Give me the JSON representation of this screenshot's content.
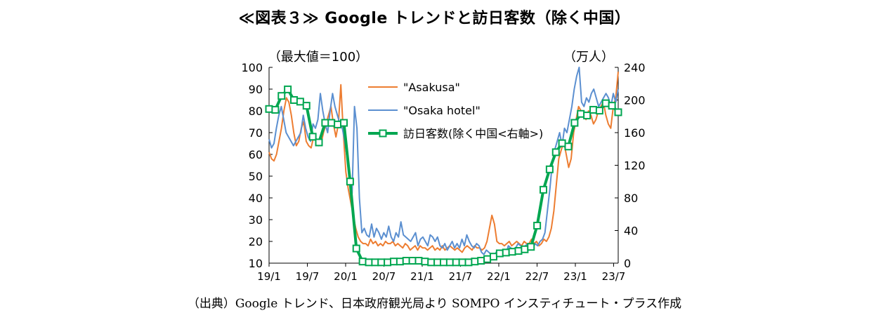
{
  "title": "≪図表３≫ Google トレンドと訪日客数（除く中国）",
  "source": "（出典）Google トレンド、日本政府観光局より SOMPO インスティチュート・プラス作成",
  "chart_data": {
    "type": "line",
    "left_unit": "（最大値＝100）",
    "right_unit": "（万人）",
    "left_ylim": [
      10,
      100
    ],
    "left_yticks": [
      "10",
      "20",
      "30",
      "40",
      "50",
      "60",
      "70",
      "80",
      "90",
      "100"
    ],
    "right_ylim": [
      0,
      240
    ],
    "right_yticks": [
      "0",
      "40",
      "80",
      "120",
      "160",
      "200",
      "240"
    ],
    "x_tick_labels": [
      "19/1",
      "19/7",
      "20/1",
      "20/7",
      "21/1",
      "21/7",
      "22/1",
      "22/7",
      "23/1",
      "23/7"
    ],
    "legend_position": "top-center",
    "grid": false,
    "series": [
      {
        "name": "\"Asakusa\"",
        "axis": "left",
        "color": "#ed7d31",
        "values": [
          61,
          58,
          57,
          60,
          66,
          72,
          80,
          86,
          84,
          78,
          70,
          64,
          66,
          72,
          75,
          66,
          64,
          63,
          68,
          66,
          64,
          65,
          70,
          74,
          78,
          82,
          74,
          68,
          74,
          92,
          70,
          52,
          44,
          38,
          32,
          26,
          22,
          20,
          19,
          19,
          18,
          21,
          19,
          20,
          18,
          19,
          18,
          20,
          19,
          19,
          20,
          18,
          19,
          18,
          17,
          19,
          18,
          16,
          17,
          18,
          16,
          18,
          17,
          17,
          16,
          17,
          18,
          16,
          17,
          16,
          18,
          16,
          17,
          18,
          17,
          16,
          17,
          16,
          15,
          17,
          18,
          17,
          16,
          18,
          17,
          17,
          16,
          17,
          20,
          26,
          32,
          28,
          20,
          19,
          19,
          18,
          19,
          20,
          18,
          19,
          20,
          19,
          18,
          20,
          19,
          19,
          21,
          19,
          20,
          18,
          19,
          21,
          20,
          22,
          26,
          34,
          46,
          58,
          62,
          66,
          60,
          54,
          58,
          70,
          76,
          82,
          80,
          78,
          76,
          80,
          78,
          74,
          76,
          80,
          82,
          84,
          78,
          74,
          72,
          82,
          86,
          98
        ]
      },
      {
        "name": "\"Osaka hotel\"",
        "axis": "left",
        "color": "#5b8fd0",
        "values": [
          67,
          63,
          65,
          72,
          78,
          82,
          76,
          70,
          68,
          66,
          64,
          66,
          68,
          70,
          78,
          72,
          68,
          66,
          74,
          72,
          76,
          88,
          80,
          74,
          70,
          80,
          88,
          82,
          78,
          74,
          72,
          66,
          58,
          48,
          42,
          82,
          72,
          40,
          24,
          26,
          23,
          22,
          28,
          22,
          26,
          24,
          21,
          24,
          22,
          27,
          22,
          20,
          24,
          22,
          29,
          23,
          22,
          21,
          20,
          22,
          24,
          18,
          21,
          22,
          20,
          18,
          23,
          22,
          20,
          22,
          18,
          17,
          19,
          16,
          18,
          20,
          17,
          19,
          17,
          21,
          18,
          23,
          20,
          18,
          17,
          19,
          18,
          15,
          14,
          16,
          15,
          14,
          13,
          15,
          14,
          15,
          16,
          14,
          18,
          17,
          16,
          17,
          19,
          18,
          17,
          18,
          19,
          18,
          17,
          19,
          18,
          20,
          21,
          24,
          34,
          44,
          56,
          62,
          66,
          70,
          64,
          72,
          70,
          76,
          82,
          90,
          96,
          100,
          84,
          82,
          86,
          84,
          88,
          90,
          86,
          82,
          84,
          86,
          88,
          86,
          82,
          88,
          84,
          90
        ]
      },
      {
        "name": "訪日客数(除く中国<右軸>)",
        "axis": "right",
        "color": "#00a650",
        "values": [
          189,
          188,
          205,
          213,
          200,
          198,
          193,
          155,
          148,
          172,
          172,
          170,
          172,
          100,
          18,
          2,
          1,
          1,
          1,
          1,
          2,
          2,
          3,
          3,
          3,
          2,
          1,
          1,
          1,
          1,
          1,
          1,
          1,
          2,
          3,
          5,
          8,
          12,
          13,
          14,
          15,
          17,
          20,
          46,
          90,
          115,
          136,
          147,
          143,
          172,
          183,
          181,
          188,
          187,
          196,
          193,
          185
        ]
      }
    ]
  }
}
